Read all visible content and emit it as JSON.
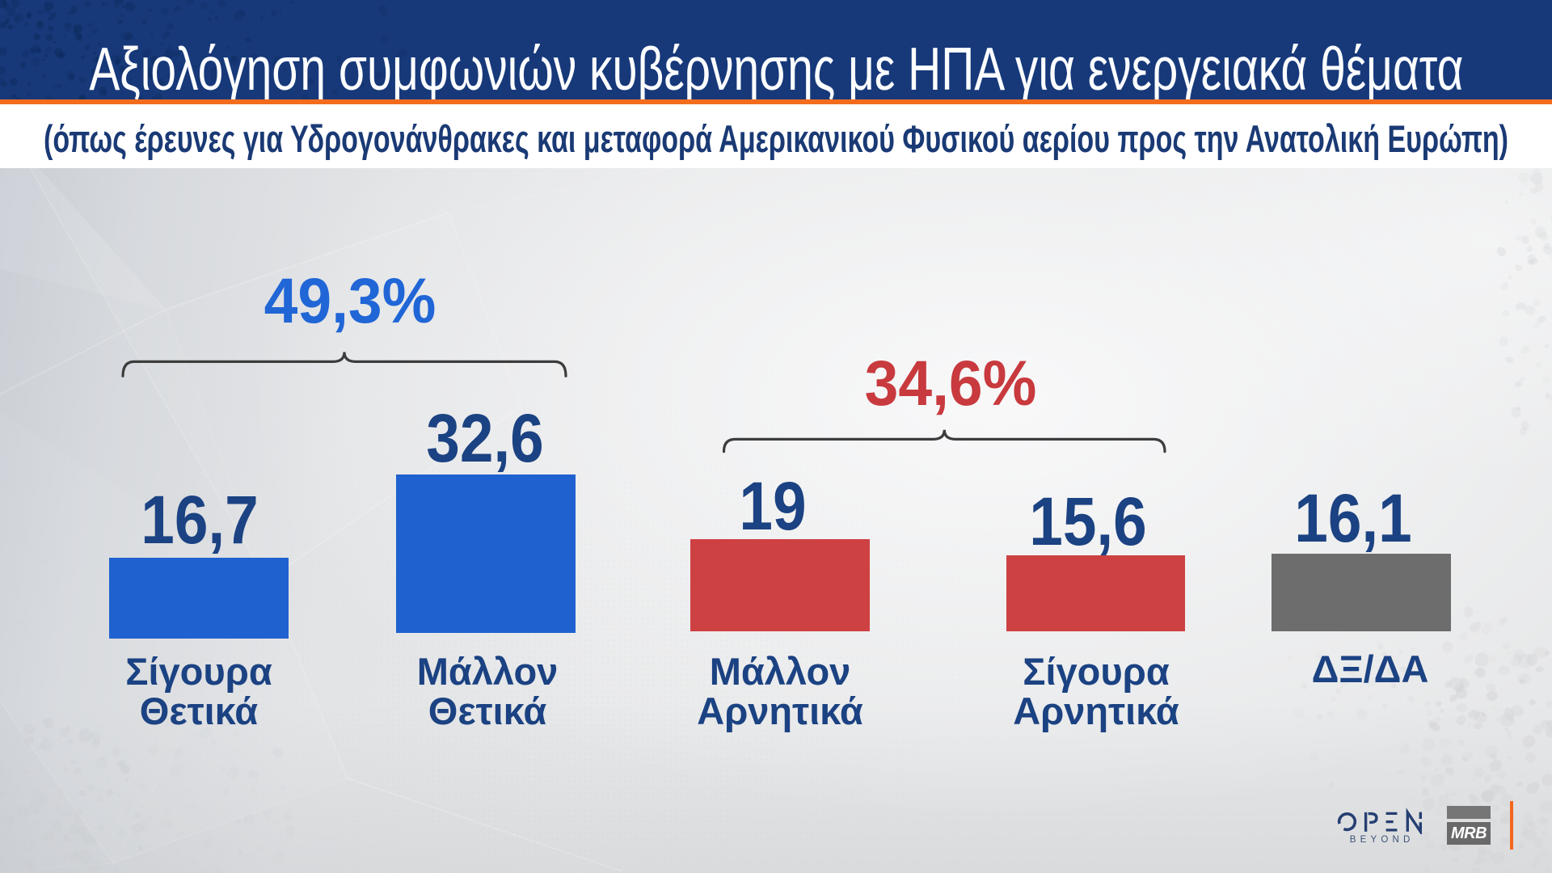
{
  "header": {
    "title": "Αξιολόγηση συμφωνιών κυβέρνησης με ΗΠΑ για ενεργειακά θέματα",
    "subtitle": "(όπως έρευνες για Υδρογονάνθρακες και μεταφορά Αμερικανικού Φυσικού αερίου προς την Ανατολική Ευρώπη)"
  },
  "chart_data": {
    "type": "bar",
    "categories": [
      "Σίγουρα Θετικά",
      "Μάλλον Θετικά",
      "Μάλλον Αρνητικά",
      "Σίγουρα Αρνητικά",
      "ΔΞ/ΔΑ"
    ],
    "values": [
      16.7,
      32.6,
      19,
      15.6,
      16.1
    ],
    "value_labels": [
      "16,7",
      "32,6",
      "19",
      "15,6",
      "16,1"
    ],
    "unit": "%",
    "bar_kinds": [
      "positive",
      "positive",
      "negative",
      "negative",
      "neutral"
    ],
    "colors": {
      "positive": "#1f61cf",
      "negative": "#cd4142",
      "neutral": "#6d6d6d"
    },
    "groups": [
      {
        "label": "49,3%",
        "covers": [
          "Σίγουρα Θετικά",
          "Μάλλον Θετικά"
        ],
        "color": "#2066d6"
      },
      {
        "label": "34,6%",
        "covers": [
          "Μάλλον Αρνητικά",
          "Σίγουρα Αρνητικά"
        ],
        "color": "#c83a3e"
      }
    ],
    "grid": false,
    "legend": false
  },
  "footer": {
    "open_logo": {
      "name": "OPEN",
      "sub": "BEYOND"
    },
    "mrb_logo": {
      "text": "MRB"
    }
  }
}
